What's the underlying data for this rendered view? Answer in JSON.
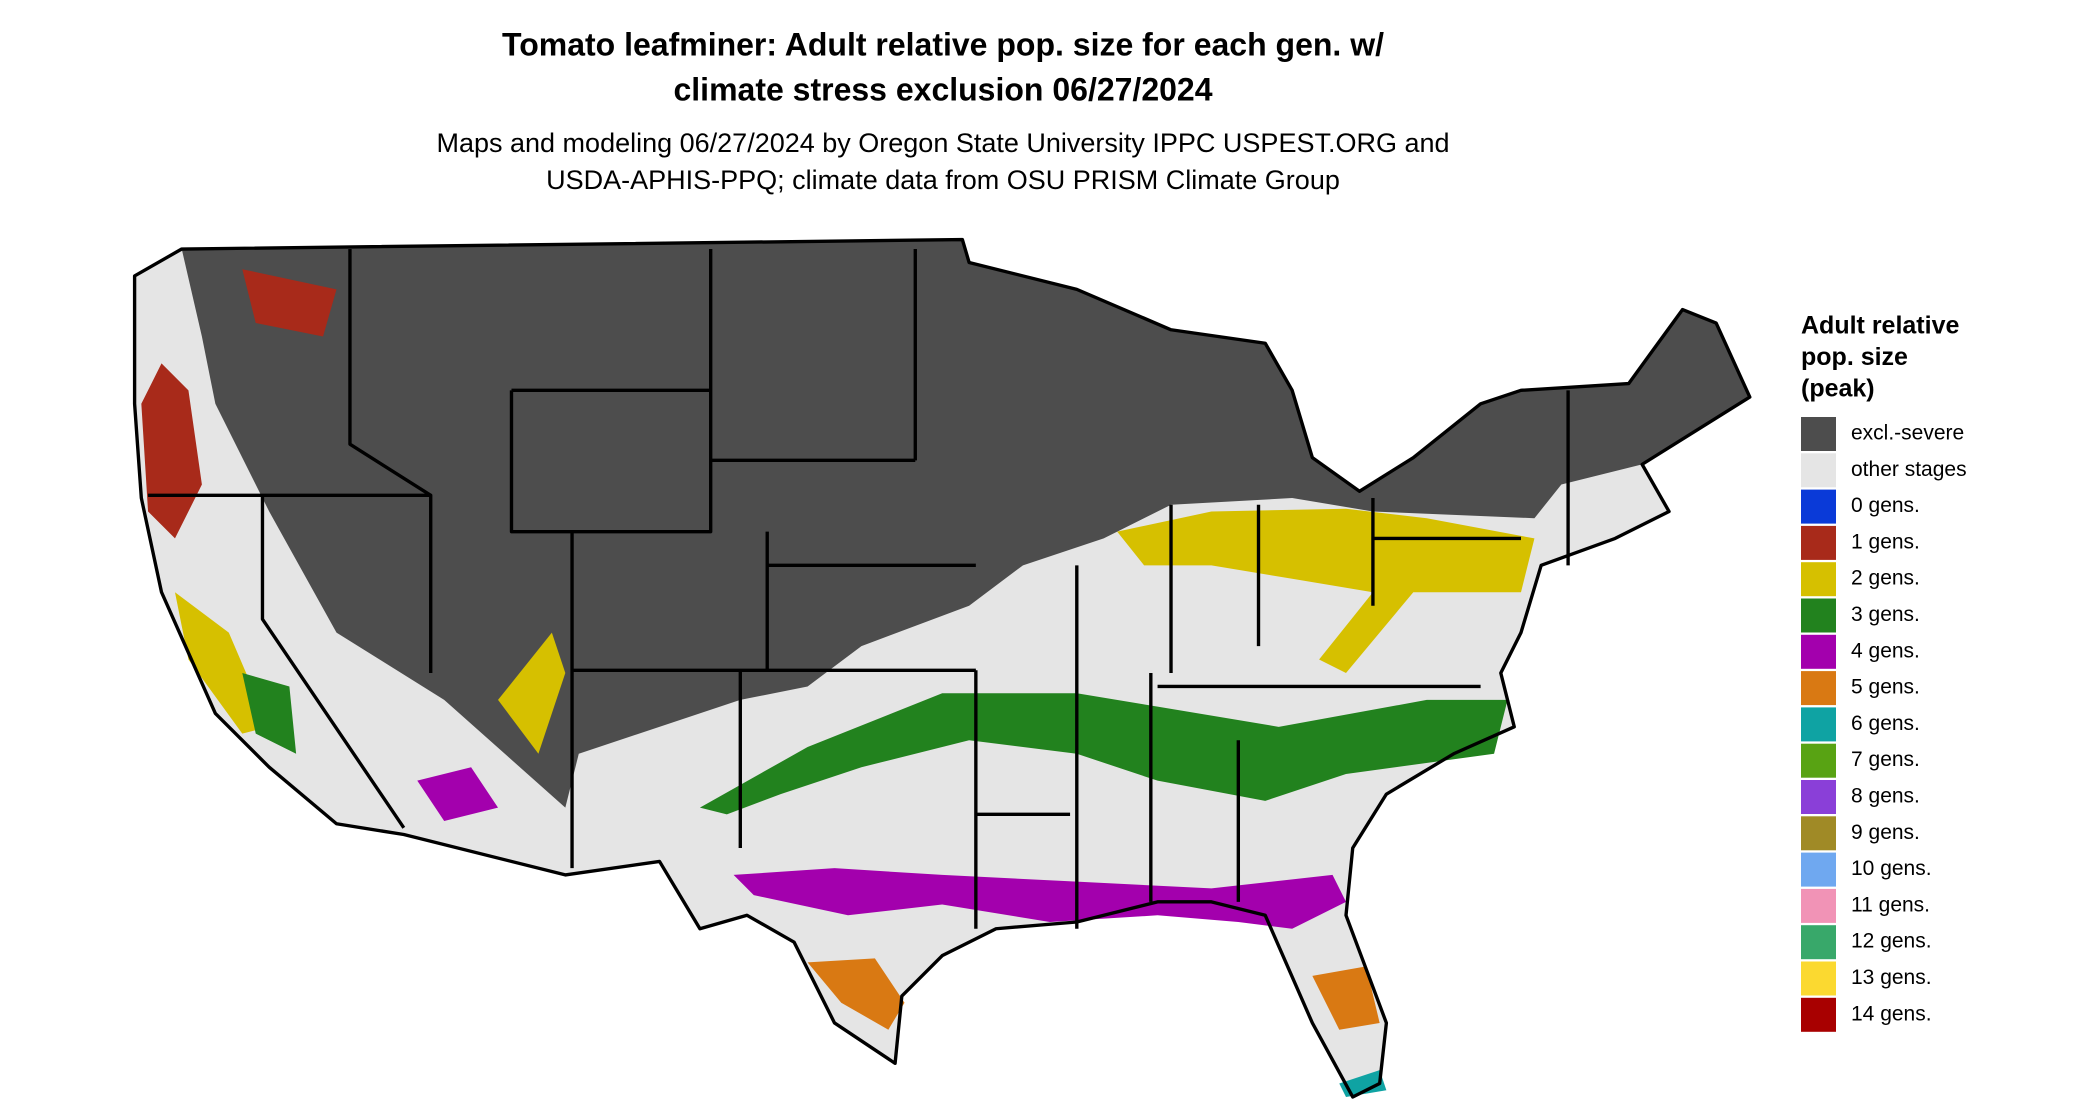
{
  "header": {
    "title_lines": [
      "Tomato leafminer: Adult relative pop. size for each gen. w/",
      "climate stress exclusion 06/27/2024"
    ],
    "subtitle_lines": [
      "Maps and modeling 06/27/2024 by Oregon State University IPPC USPEST.ORG and",
      "USDA-APHIS-PPQ; climate data from OSU PRISM Climate Group"
    ]
  },
  "legend": {
    "title_lines": [
      "Adult relative",
      "pop. size",
      "(peak)"
    ],
    "items": [
      {
        "label": "excl.-severe",
        "color": "#4d4d4d"
      },
      {
        "label": "other stages",
        "color": "#e5e5e5"
      },
      {
        "label": "0 gens.",
        "color": "#0a3ad8"
      },
      {
        "label": "1 gens.",
        "color": "#a82a1a"
      },
      {
        "label": "2 gens.",
        "color": "#d6c000"
      },
      {
        "label": "3 gens.",
        "color": "#22821e"
      },
      {
        "label": "4 gens.",
        "color": "#a300ad"
      },
      {
        "label": "5 gens.",
        "color": "#d97913"
      },
      {
        "label": "6 gens.",
        "color": "#0fa3a3"
      },
      {
        "label": "7 gens.",
        "color": "#58a313"
      },
      {
        "label": "8 gens.",
        "color": "#8a3fd8"
      },
      {
        "label": "9 gens.",
        "color": "#a08a26"
      },
      {
        "label": "10 gens.",
        "color": "#6fa8f0"
      },
      {
        "label": "11 gens.",
        "color": "#f193b6"
      },
      {
        "label": "12 gens.",
        "color": "#38a86a"
      },
      {
        "label": "13 gens.",
        "color": "#fbd930"
      },
      {
        "label": "14 gens.",
        "color": "#a80000"
      }
    ]
  }
}
